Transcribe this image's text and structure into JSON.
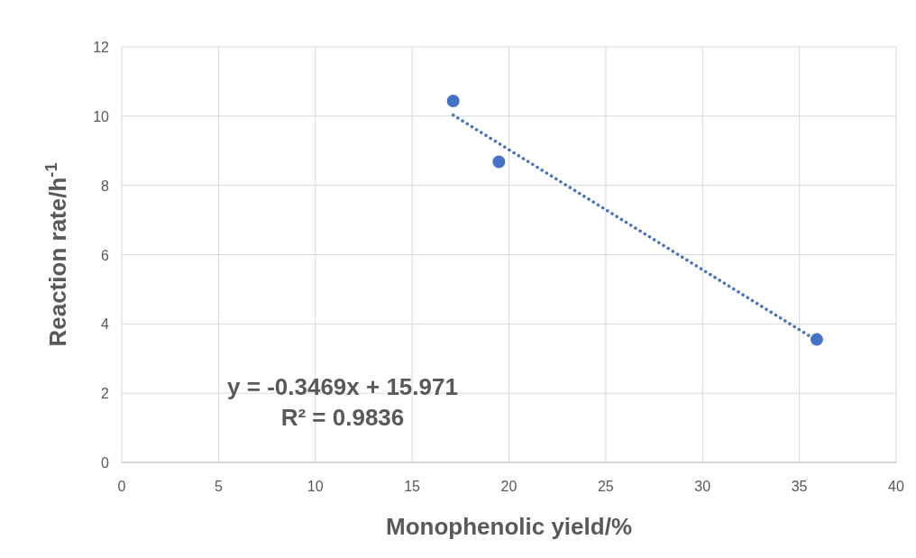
{
  "chart_data": {
    "type": "scatter",
    "xlabel": "Monophenolic yield/%",
    "ylabel": "Reaction rate/h$^{-1}$",
    "xlim": [
      0,
      40
    ],
    "xticks": [
      0,
      5,
      10,
      15,
      20,
      25,
      30,
      35,
      40
    ],
    "ylim": [
      0,
      12
    ],
    "yticks": [
      0,
      2,
      4,
      6,
      8,
      10,
      12
    ],
    "grid": true,
    "series": [
      {
        "color": "#4472c4",
        "marker": "circle",
        "x": [
          17.12,
          19.48,
          35.9
        ],
        "values": [
          10.44,
          8.68,
          3.55
        ]
      },
      {
        "type": "line",
        "color": "#4472c4",
        "line_style": "dotted",
        "x": [
          17.12,
          35.9
        ],
        "values": [
          10.03,
          3.52
        ]
      }
    ],
    "annotations": [
      "y = -0.3469x + 15.971",
      "R² = 0.9836"
    ]
  }
}
